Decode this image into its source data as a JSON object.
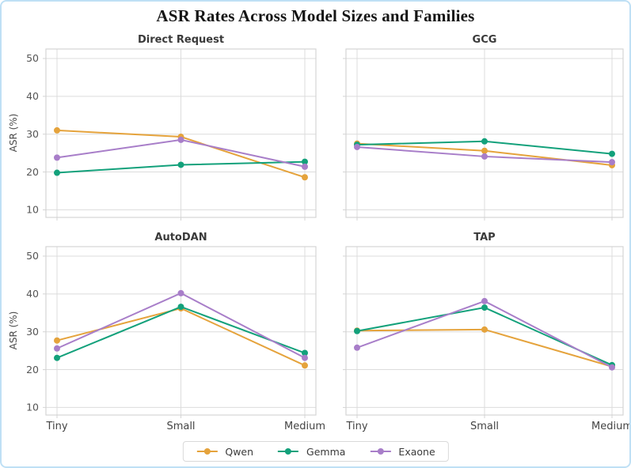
{
  "figure": {
    "title": "ASR Rates Across Model Sizes and Families"
  },
  "axes": {
    "ylabel": "ASR (%)",
    "categories": [
      "Tiny",
      "Small",
      "Medium"
    ],
    "yticks": [
      10,
      20,
      30,
      40,
      50
    ],
    "ylim": [
      8,
      52.5
    ],
    "grid": true
  },
  "legend": {
    "position": "bottom-center",
    "items": [
      {
        "label": "Qwen",
        "color": "#E5A33C"
      },
      {
        "label": "Gemma",
        "color": "#13A17B"
      },
      {
        "label": "Exaone",
        "color": "#A87EC9"
      }
    ]
  },
  "style_colors": {
    "gridline": "#DCDCDC",
    "spine": "#D4D4D4",
    "tick_label": "#555555",
    "x_label": "#444444",
    "outer_border": "#BFE0F5"
  },
  "chart_data": [
    {
      "type": "line",
      "title": "Direct Request",
      "categories": [
        "Tiny",
        "Small",
        "Medium"
      ],
      "series": [
        {
          "name": "Qwen",
          "values": [
            31.0,
            29.3,
            18.6
          ]
        },
        {
          "name": "Gemma",
          "values": [
            19.8,
            21.9,
            22.7
          ]
        },
        {
          "name": "Exaone",
          "values": [
            23.8,
            28.5,
            21.4
          ]
        }
      ],
      "ylabel": "ASR (%)",
      "ylim": [
        8,
        52.5
      ],
      "grid": true,
      "legend_position": "none"
    },
    {
      "type": "line",
      "title": "GCG",
      "categories": [
        "Tiny",
        "Small",
        "Medium"
      ],
      "series": [
        {
          "name": "Qwen",
          "values": [
            27.5,
            25.6,
            21.8
          ]
        },
        {
          "name": "Gemma",
          "values": [
            27.2,
            28.1,
            24.8
          ]
        },
        {
          "name": "Exaone",
          "values": [
            26.6,
            24.1,
            22.6
          ]
        }
      ],
      "ylabel": "",
      "ylim": [
        8,
        52.5
      ],
      "grid": true,
      "legend_position": "none"
    },
    {
      "type": "line",
      "title": "AutoDAN",
      "categories": [
        "Tiny",
        "Small",
        "Medium"
      ],
      "series": [
        {
          "name": "Qwen",
          "values": [
            27.7,
            36.2,
            21.1
          ]
        },
        {
          "name": "Gemma",
          "values": [
            23.1,
            36.6,
            24.4
          ]
        },
        {
          "name": "Exaone",
          "values": [
            25.6,
            40.2,
            23.1
          ]
        }
      ],
      "ylabel": "ASR (%)",
      "ylim": [
        8,
        52.5
      ],
      "grid": true,
      "legend_position": "none"
    },
    {
      "type": "line",
      "title": "TAP",
      "categories": [
        "Tiny",
        "Small",
        "Medium"
      ],
      "series": [
        {
          "name": "Qwen",
          "values": [
            30.3,
            30.6,
            20.8
          ]
        },
        {
          "name": "Gemma",
          "values": [
            30.2,
            36.4,
            21.2
          ]
        },
        {
          "name": "Exaone",
          "values": [
            25.8,
            38.1,
            20.6
          ]
        }
      ],
      "ylabel": "",
      "ylim": [
        8,
        52.5
      ],
      "grid": true,
      "legend_position": "none"
    }
  ]
}
